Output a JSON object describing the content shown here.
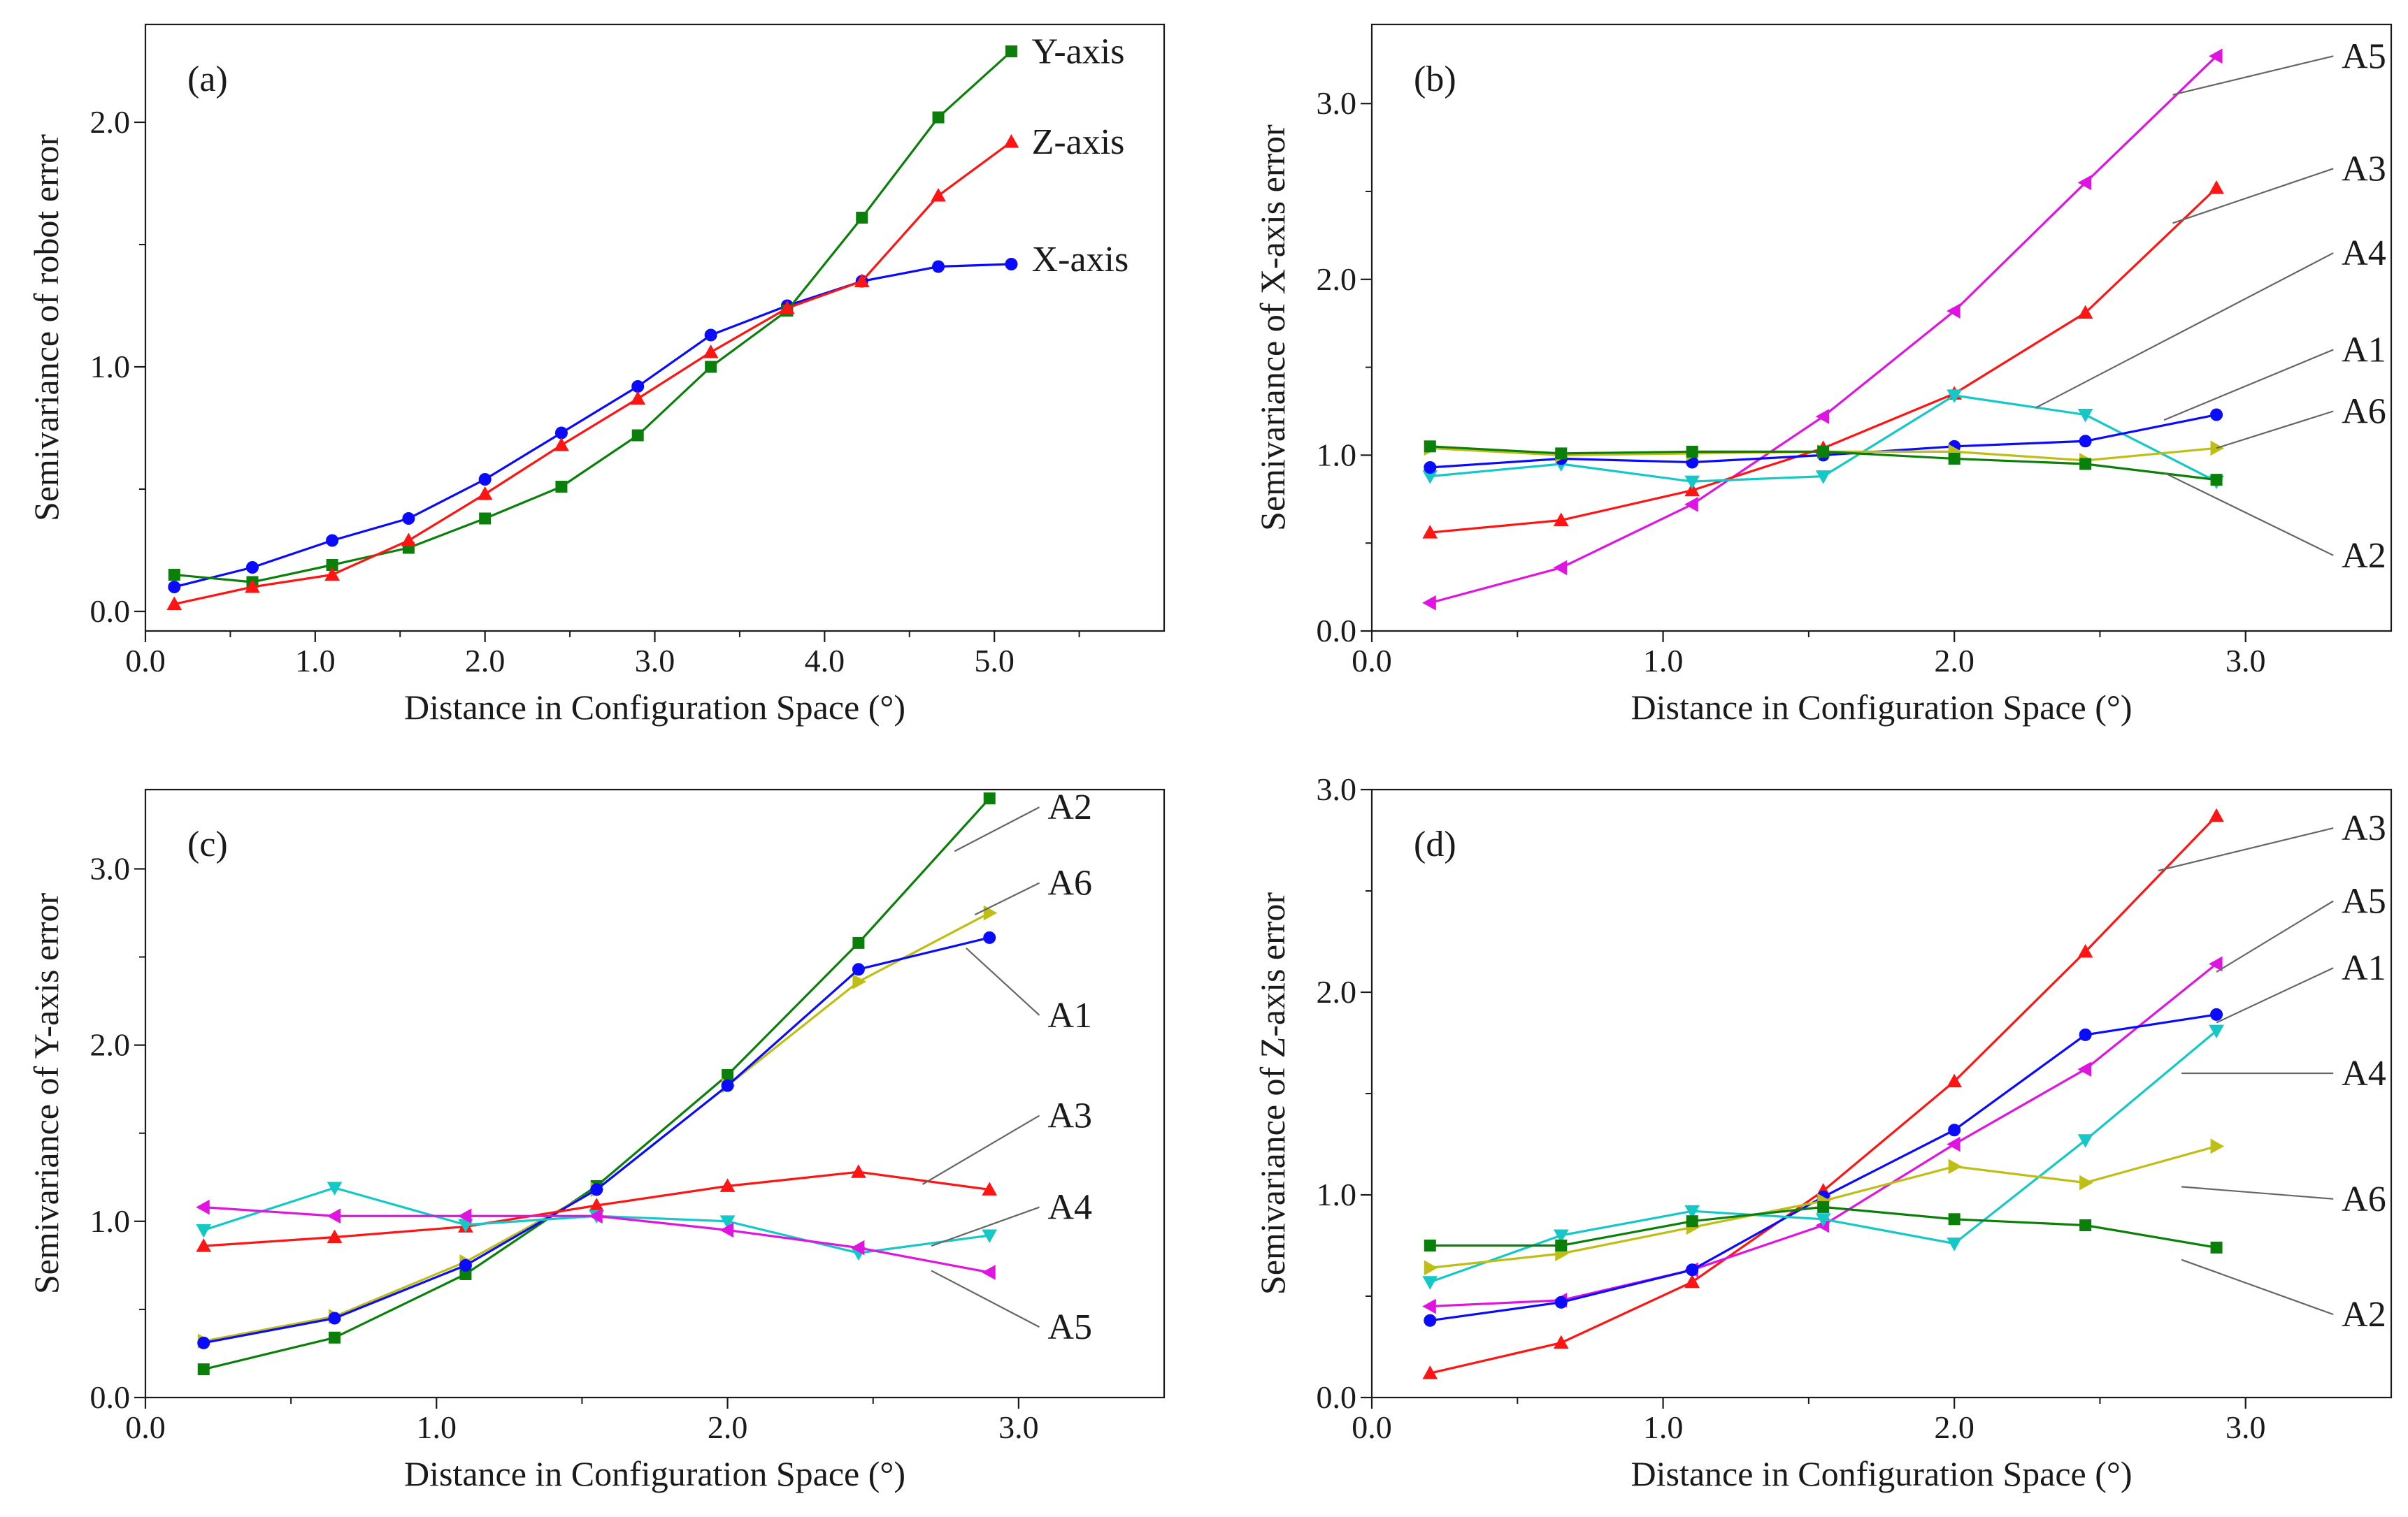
{
  "colors": {
    "axis": "#1a1a1a",
    "leader": "#666666",
    "blue": "#0a0aff",
    "green": "#0a800a",
    "red": "#ff1414",
    "magenta": "#e014e0",
    "cyan": "#14c8c8",
    "yellow": "#bebe14"
  },
  "chart_data": [
    {
      "type": "line",
      "panel": "(a)",
      "xlabel": "Distance in Configuration Space (°)",
      "ylabel": "Semivariance of robot error",
      "xlim": [
        0.0,
        6.0
      ],
      "ylim": [
        -0.08,
        2.4
      ],
      "xticks": [
        0.0,
        1.0,
        2.0,
        3.0,
        4.0,
        5.0
      ],
      "xtick_labels": [
        "0.0",
        "1.0",
        "2.0",
        "3.0",
        "4.0",
        "5.0"
      ],
      "yticks": [
        0.0,
        1.0,
        2.0
      ],
      "ytick_labels": [
        "0.0",
        "1.0",
        "2.0"
      ],
      "x": [
        0.17,
        0.63,
        1.1,
        1.55,
        2.0,
        2.45,
        2.9,
        3.33,
        3.78,
        4.22,
        4.67,
        5.1
      ],
      "series": [
        {
          "name": "X-axis",
          "color": "blue",
          "marker": "circle",
          "label_pos": [
            5.22,
            1.44
          ],
          "values": [
            0.1,
            0.18,
            0.29,
            0.38,
            0.54,
            0.73,
            0.92,
            1.13,
            1.25,
            1.35,
            1.41,
            1.42
          ]
        },
        {
          "name": "Y-axis",
          "color": "green",
          "marker": "square",
          "label_pos": [
            5.22,
            2.29
          ],
          "values": [
            0.15,
            0.12,
            0.19,
            0.26,
            0.38,
            0.51,
            0.72,
            1.0,
            1.23,
            1.61,
            2.02,
            2.29
          ]
        },
        {
          "name": "Z-axis",
          "color": "red",
          "marker": "triangle-up",
          "label_pos": [
            5.22,
            1.92
          ],
          "values": [
            0.03,
            0.1,
            0.15,
            0.29,
            0.48,
            0.68,
            0.87,
            1.06,
            1.24,
            1.35,
            1.7,
            1.92
          ]
        }
      ]
    },
    {
      "type": "line",
      "panel": "(b)",
      "xlabel": "Distance in Configuration Space (°)",
      "ylabel": "Semivariance of X-axis error",
      "xlim": [
        0.0,
        3.5
      ],
      "ylim": [
        0.0,
        3.45
      ],
      "xticks": [
        0.0,
        1.0,
        2.0,
        3.0
      ],
      "xtick_labels": [
        "0.0",
        "1.0",
        "2.0",
        "3.0"
      ],
      "yticks": [
        0.0,
        1.0,
        2.0,
        3.0
      ],
      "ytick_labels": [
        "0.0",
        "1.0",
        "2.0",
        "3.0"
      ],
      "x": [
        0.2,
        0.65,
        1.1,
        1.55,
        2.0,
        2.45,
        2.9
      ],
      "series": [
        {
          "name": "A5",
          "color": "magenta",
          "marker": "triangle-left",
          "label_pos": [
            3.33,
            3.27
          ],
          "anchor": [
            2.75,
            3.05
          ],
          "values": [
            0.16,
            0.36,
            0.72,
            1.22,
            1.82,
            2.55,
            3.27
          ]
        },
        {
          "name": "A3",
          "color": "red",
          "marker": "triangle-up",
          "label_pos": [
            3.33,
            2.63
          ],
          "anchor": [
            2.75,
            2.32
          ],
          "values": [
            0.56,
            0.63,
            0.8,
            1.04,
            1.35,
            1.81,
            2.52
          ]
        },
        {
          "name": "A4",
          "color": "cyan",
          "marker": "triangle-down",
          "label_pos": [
            3.33,
            2.15
          ],
          "anchor": [
            2.28,
            1.27
          ],
          "values": [
            0.88,
            0.95,
            0.85,
            0.88,
            1.34,
            1.23,
            0.85
          ]
        },
        {
          "name": "A1",
          "color": "blue",
          "marker": "circle",
          "label_pos": [
            3.33,
            1.6
          ],
          "anchor": [
            2.72,
            1.2
          ],
          "values": [
            0.93,
            0.98,
            0.96,
            1.0,
            1.05,
            1.08,
            1.23
          ]
        },
        {
          "name": "A6",
          "color": "yellow",
          "marker": "triangle-right",
          "label_pos": [
            3.33,
            1.25
          ],
          "anchor": [
            2.9,
            1.04
          ],
          "values": [
            1.04,
            1.0,
            1.01,
            1.02,
            1.02,
            0.97,
            1.04
          ]
        },
        {
          "name": "A2",
          "color": "green",
          "marker": "square",
          "label_pos": [
            3.33,
            0.43
          ],
          "anchor": [
            2.72,
            0.9
          ],
          "values": [
            1.05,
            1.01,
            1.02,
            1.02,
            0.98,
            0.95,
            0.86
          ]
        }
      ]
    },
    {
      "type": "line",
      "panel": "(c)",
      "xlabel": "Distance in Configuration Space (°)",
      "ylabel": "Semivariance of Y-axis error",
      "xlim": [
        0.0,
        3.5
      ],
      "ylim": [
        0.0,
        3.45
      ],
      "xticks": [
        0.0,
        1.0,
        2.0,
        3.0
      ],
      "xtick_labels": [
        "0.0",
        "1.0",
        "2.0",
        "3.0"
      ],
      "yticks": [
        0.0,
        1.0,
        2.0,
        3.0
      ],
      "ytick_labels": [
        "0.0",
        "1.0",
        "2.0",
        "3.0"
      ],
      "x": [
        0.2,
        0.65,
        1.1,
        1.55,
        2.0,
        2.45,
        2.9
      ],
      "series": [
        {
          "name": "A2",
          "color": "green",
          "marker": "square",
          "label_pos": [
            3.1,
            3.35
          ],
          "anchor": [
            2.78,
            3.1
          ],
          "values": [
            0.16,
            0.34,
            0.7,
            1.2,
            1.83,
            2.58,
            3.4
          ]
        },
        {
          "name": "A6",
          "color": "yellow",
          "marker": "triangle-right",
          "label_pos": [
            3.1,
            2.92
          ],
          "anchor": [
            2.85,
            2.74
          ],
          "values": [
            0.32,
            0.46,
            0.77,
            1.18,
            1.77,
            2.36,
            2.75
          ]
        },
        {
          "name": "A1",
          "color": "blue",
          "marker": "circle",
          "label_pos": [
            3.1,
            2.17
          ],
          "anchor": [
            2.82,
            2.55
          ],
          "values": [
            0.31,
            0.45,
            0.75,
            1.18,
            1.77,
            2.43,
            2.61
          ]
        },
        {
          "name": "A3",
          "color": "red",
          "marker": "triangle-up",
          "label_pos": [
            3.1,
            1.6
          ],
          "anchor": [
            2.67,
            1.21
          ],
          "values": [
            0.86,
            0.91,
            0.97,
            1.09,
            1.2,
            1.28,
            1.18
          ]
        },
        {
          "name": "A4",
          "color": "cyan",
          "marker": "triangle-down",
          "label_pos": [
            3.1,
            1.08
          ],
          "anchor": [
            2.7,
            0.86
          ],
          "values": [
            0.95,
            1.19,
            0.98,
            1.03,
            1.0,
            0.82,
            0.92
          ]
        },
        {
          "name": "A5",
          "color": "magenta",
          "marker": "triangle-left",
          "label_pos": [
            3.1,
            0.4
          ],
          "anchor": [
            2.7,
            0.72
          ],
          "values": [
            1.08,
            1.03,
            1.03,
            1.03,
            0.95,
            0.85,
            0.71
          ]
        }
      ]
    },
    {
      "type": "line",
      "panel": "(d)",
      "xlabel": "Distance in Configuration Space (°)",
      "ylabel": "Semivariance of Z-axis error",
      "xlim": [
        0.0,
        3.5
      ],
      "ylim": [
        0.0,
        3.0
      ],
      "xticks": [
        0.0,
        1.0,
        2.0,
        3.0
      ],
      "xtick_labels": [
        "0.0",
        "1.0",
        "2.0",
        "3.0"
      ],
      "yticks": [
        0.0,
        1.0,
        2.0,
        3.0
      ],
      "ytick_labels": [
        "0.0",
        "1.0",
        "2.0",
        "3.0"
      ],
      "x": [
        0.2,
        0.65,
        1.1,
        1.55,
        2.0,
        2.45,
        2.9
      ],
      "series": [
        {
          "name": "A3",
          "color": "red",
          "marker": "triangle-up",
          "label_pos": [
            3.33,
            2.81
          ],
          "anchor": [
            2.7,
            2.6
          ],
          "values": [
            0.12,
            0.27,
            0.57,
            1.02,
            1.56,
            2.2,
            2.87
          ]
        },
        {
          "name": "A5",
          "color": "magenta",
          "marker": "triangle-left",
          "label_pos": [
            3.33,
            2.45
          ],
          "anchor": [
            2.9,
            2.1
          ],
          "values": [
            0.45,
            0.48,
            0.63,
            0.85,
            1.25,
            1.62,
            2.14
          ]
        },
        {
          "name": "A1",
          "color": "blue",
          "marker": "circle",
          "label_pos": [
            3.33,
            2.12
          ],
          "anchor": [
            2.9,
            1.85
          ],
          "values": [
            0.38,
            0.47,
            0.63,
            0.99,
            1.32,
            1.79,
            1.89
          ]
        },
        {
          "name": "A4",
          "color": "cyan",
          "marker": "triangle-down",
          "label_pos": [
            3.33,
            1.6
          ],
          "anchor": [
            2.78,
            1.6
          ],
          "values": [
            0.57,
            0.8,
            0.92,
            0.88,
            0.76,
            1.27,
            1.81
          ]
        },
        {
          "name": "A6",
          "color": "yellow",
          "marker": "triangle-right",
          "label_pos": [
            3.33,
            0.98
          ],
          "anchor": [
            2.78,
            1.04
          ],
          "values": [
            0.64,
            0.71,
            0.84,
            0.97,
            1.14,
            1.06,
            1.24
          ]
        },
        {
          "name": "A2",
          "color": "green",
          "marker": "square",
          "label_pos": [
            3.33,
            0.41
          ],
          "anchor": [
            2.78,
            0.68
          ],
          "values": [
            0.75,
            0.75,
            0.87,
            0.94,
            0.88,
            0.85,
            0.74
          ]
        }
      ]
    }
  ]
}
